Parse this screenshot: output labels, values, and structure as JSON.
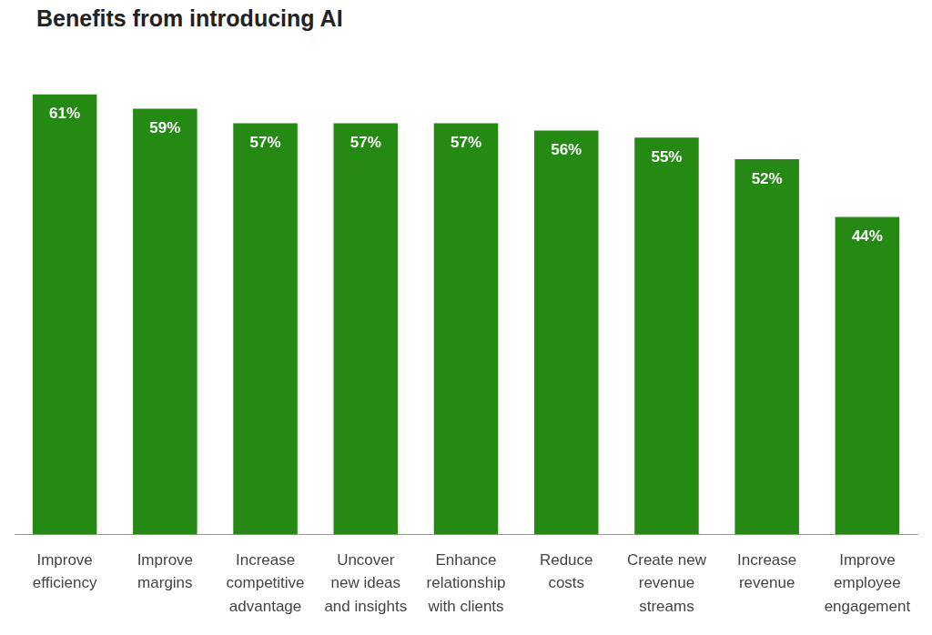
{
  "chart_data": {
    "type": "bar",
    "title": "Benefits from introducing AI",
    "categories": [
      "Improve\nefficiency",
      "Improve\nmargins",
      "Increase\ncompetitive\nadvantage",
      "Uncover\nnew ideas\nand insights",
      "Enhance\nrelationship\nwith clients",
      "Reduce\ncosts",
      "Create new\nrevenue\nstreams",
      "Increase\nrevenue",
      "Improve\nemployee\nengagement"
    ],
    "values": [
      61,
      59,
      57,
      57,
      57,
      56,
      55,
      52,
      44
    ],
    "value_labels": [
      "61%",
      "59%",
      "57%",
      "57%",
      "57%",
      "56%",
      "55%",
      "52%",
      "44%"
    ],
    "color": "#258a14",
    "ylim": [
      0,
      65
    ],
    "grid": false,
    "tick_labels": "x",
    "data_labels": true
  }
}
